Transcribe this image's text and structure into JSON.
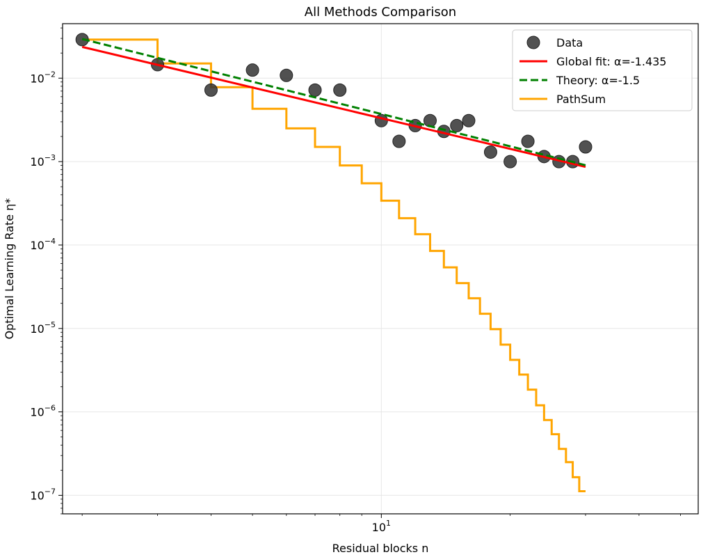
{
  "chart_data": {
    "type": "line",
    "title": "All Methods Comparison",
    "xlabel": "Residual blocks n",
    "ylabel": "Optimal Learning Rate η*",
    "x_scale": "log",
    "y_scale": "log",
    "xlim": [
      1.8,
      55
    ],
    "ylim": [
      6e-08,
      0.045
    ],
    "grid": true,
    "x_tick_labels": [
      {
        "value": 10,
        "base": "10",
        "exp": "1"
      }
    ],
    "y_tick_labels": [
      {
        "value": 0.01,
        "base": "10",
        "exp": "−2"
      },
      {
        "value": 0.001,
        "base": "10",
        "exp": "−3"
      },
      {
        "value": 0.0001,
        "base": "10",
        "exp": "−4"
      },
      {
        "value": 1e-05,
        "base": "10",
        "exp": "−5"
      },
      {
        "value": 1e-06,
        "base": "10",
        "exp": "−6"
      },
      {
        "value": 1e-07,
        "base": "10",
        "exp": "−7"
      }
    ],
    "legend_position": "top-right",
    "series": [
      {
        "name": "Data",
        "kind": "scatter",
        "color": "#333333",
        "x": [
          2,
          3,
          4,
          5,
          6,
          7,
          8,
          10,
          11,
          12,
          13,
          14,
          15,
          16,
          18,
          20,
          22,
          24,
          26,
          28,
          30
        ],
        "y": [
          0.029,
          0.0145,
          0.0072,
          0.0125,
          0.0108,
          0.0072,
          0.0072,
          0.0031,
          0.00175,
          0.0027,
          0.0031,
          0.0023,
          0.0027,
          0.0031,
          0.0013,
          0.001,
          0.00175,
          0.00115,
          0.001,
          0.001,
          0.0015
        ]
      },
      {
        "name": "Global fit: α=-1.435",
        "kind": "line",
        "color": "#ff0000",
        "dash": "solid",
        "x": [
          2,
          30
        ],
        "y": [
          0.0237,
          0.000865
        ]
      },
      {
        "name": "Theory: α=-1.5",
        "kind": "line",
        "color": "#008000",
        "dash": "dashed",
        "x": [
          2,
          30
        ],
        "y": [
          0.0295,
          0.000905
        ]
      },
      {
        "name": "PathSum",
        "kind": "step",
        "color": "#ffa500",
        "x": [
          2,
          3,
          4,
          5,
          6,
          7,
          8,
          9,
          10,
          11,
          12,
          13,
          14,
          15,
          16,
          17,
          18,
          19,
          20,
          21,
          22,
          23,
          24,
          25,
          26,
          27,
          28,
          29,
          30
        ],
        "y": [
          0.029,
          0.015,
          0.0078,
          0.0043,
          0.0025,
          0.0015,
          0.0009,
          0.00055,
          0.00034,
          0.00021,
          0.000135,
          8.5e-05,
          5.4e-05,
          3.5e-05,
          2.3e-05,
          1.5e-05,
          9.8e-06,
          6.4e-06,
          4.2e-06,
          2.8e-06,
          1.85e-06,
          1.2e-06,
          8e-07,
          5.4e-07,
          3.6e-07,
          2.5e-07,
          1.65e-07,
          1.12e-07,
          1.12e-07
        ]
      }
    ]
  }
}
